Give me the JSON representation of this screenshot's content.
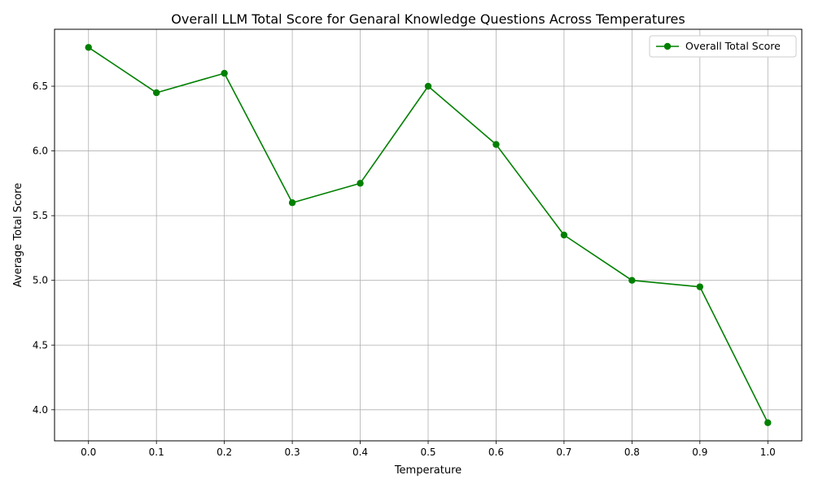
{
  "chart_data": {
    "type": "line",
    "title": "Overall LLM Total Score for  Genaral Knowledge Questions Across Temperatures",
    "xlabel": "Temperature",
    "ylabel": "Average Total Score",
    "x": [
      0.0,
      0.1,
      0.2,
      0.3,
      0.4,
      0.5,
      0.6,
      0.7,
      0.8,
      0.9,
      1.0
    ],
    "x_tick_labels": [
      "0.0",
      "0.1",
      "0.2",
      "0.3",
      "0.4",
      "0.5",
      "0.6",
      "0.7",
      "0.8",
      "0.9",
      "1.0"
    ],
    "y_ticks": [
      4.0,
      4.5,
      5.0,
      5.5,
      6.0,
      6.5
    ],
    "y_tick_labels": [
      "4.0",
      "4.5",
      "5.0",
      "5.5",
      "6.0",
      "6.5"
    ],
    "xlim": [
      -0.05,
      1.05
    ],
    "ylim": [
      3.76,
      6.94
    ],
    "grid": true,
    "legend_position": "top-right",
    "series": [
      {
        "name": "Overall Total Score",
        "color": "#008000",
        "marker": "circle",
        "values": [
          6.8,
          6.45,
          6.6,
          5.6,
          5.75,
          6.5,
          6.05,
          5.35,
          5.0,
          4.95,
          3.9
        ]
      }
    ]
  }
}
